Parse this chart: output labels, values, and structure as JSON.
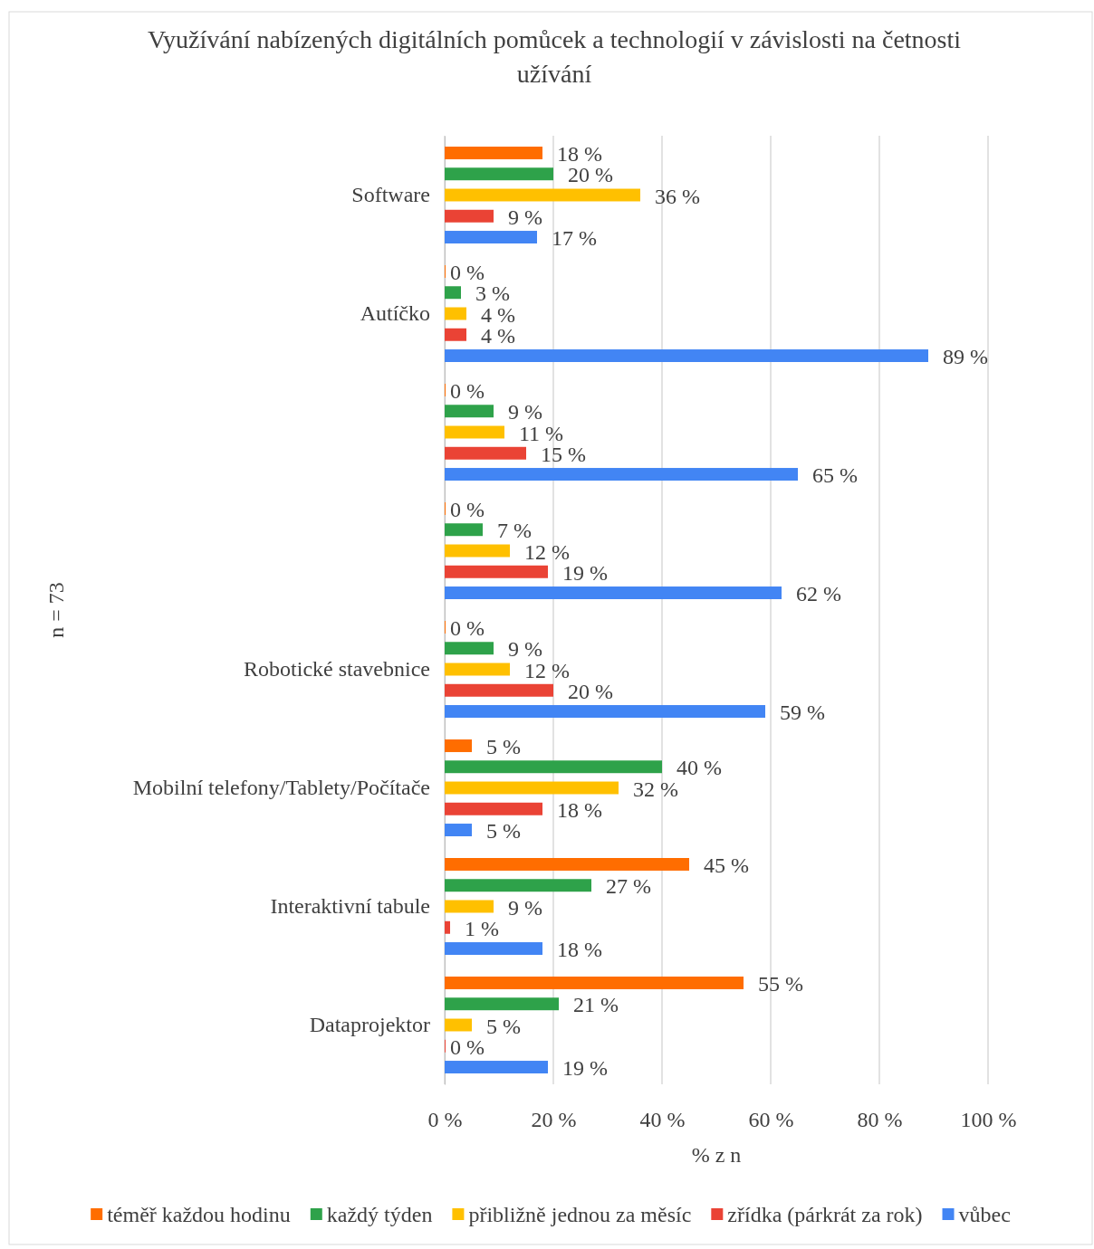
{
  "chart_data": {
    "type": "bar",
    "orientation": "horizontal",
    "title": "Využívání nabízených digitálních pomůcek a technologií v závislosti na četnosti užívání",
    "xlabel": "% z n",
    "ylabel": "n = 73",
    "categories": [
      "Software",
      "Autíčko",
      null,
      null,
      "Robotické stavebnice",
      "Mobilní telefony/Tablety/Počítače",
      "Interaktivní tabule",
      "Dataprojektor"
    ],
    "series": [
      {
        "name": "téměř každou hodinu",
        "color": "#ff6d00",
        "values": [
          18,
          0,
          0,
          0,
          0,
          5,
          45,
          55
        ],
        "value_labels": [
          "18 %",
          "0 %",
          "0 %",
          "0 %",
          "0 %",
          "5 %",
          "45 %",
          "55 %"
        ]
      },
      {
        "name": "každý týden",
        "color": "#2ea24a",
        "values": [
          20,
          3,
          9,
          7,
          9,
          40,
          27,
          21
        ],
        "value_labels": [
          "20 %",
          "3 %",
          "9 %",
          "7 %",
          "9 %",
          "40 %",
          "27 %",
          "21 %"
        ]
      },
      {
        "name": "přibližně jednou za měsíc",
        "color": "#ffc000",
        "values": [
          36,
          4,
          11,
          12,
          12,
          32,
          9,
          5
        ],
        "value_labels": [
          "36 %",
          "4 %",
          "11 %",
          "12 %",
          "12 %",
          "32 %",
          "9 %",
          "5 %"
        ]
      },
      {
        "name": "zřídka (párkrát za rok)",
        "color": "#ea4335",
        "values": [
          9,
          4,
          15,
          19,
          20,
          18,
          1,
          0
        ],
        "value_labels": [
          "9 %",
          "4 %",
          "15 %",
          "19 %",
          "20 %",
          "18 %",
          "1 %",
          "0 %"
        ]
      },
      {
        "name": "vůbec",
        "color": "#4285f4",
        "values": [
          17,
          89,
          65,
          62,
          59,
          5,
          18,
          19
        ],
        "value_labels": [
          "17 %",
          "89 %",
          "65 %",
          "62 %",
          "59 %",
          "5 %",
          "18 %",
          "19 %"
        ]
      }
    ],
    "xlim": [
      0,
      100
    ],
    "xticks": [
      {
        "value": 0,
        "label": "0 %"
      },
      {
        "value": 20,
        "label": "20 %"
      },
      {
        "value": 40,
        "label": "40 %"
      },
      {
        "value": 60,
        "label": "60 %"
      },
      {
        "value": 80,
        "label": "80 %"
      },
      {
        "value": 100,
        "label": "100 %"
      }
    ],
    "grid": "x",
    "legend": "bottom"
  }
}
